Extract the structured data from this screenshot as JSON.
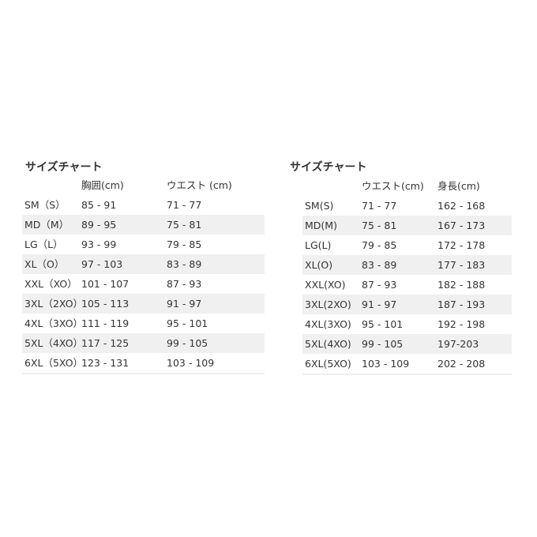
{
  "left": {
    "title": "サイズチャート",
    "headers": [
      "",
      "胸囲(cm)",
      "ウエスト (cm)"
    ],
    "rows": [
      [
        "SM（S）",
        "85 - 91",
        "71 - 77"
      ],
      [
        "MD（M）",
        "89 - 95",
        "75 - 81"
      ],
      [
        "LG（L）",
        "93 - 99",
        "79 - 85"
      ],
      [
        "XL（O）",
        "97 - 103",
        "83 - 89"
      ],
      [
        "XXL（XO）",
        "101 - 107",
        "87 - 93"
      ],
      [
        "3XL（2XO）",
        "105 - 113",
        "91 - 97"
      ],
      [
        "4XL（3XO）",
        "111 - 119",
        "95 - 101"
      ],
      [
        "5XL（4XO）",
        "117 - 125",
        "99 - 105"
      ],
      [
        "6XL（5XO）",
        "123 - 131",
        "103 - 109"
      ]
    ]
  },
  "right": {
    "title": "サイズチャート",
    "headers": [
      "",
      "ウエスト(cm)",
      "身長(cm)"
    ],
    "rows": [
      [
        "SM(S)",
        "71 - 77",
        "162 - 168"
      ],
      [
        "MD(M)",
        "75 - 81",
        "167 - 173"
      ],
      [
        "LG(L)",
        "79 - 85",
        "172 - 178"
      ],
      [
        "XL(O)",
        "83 - 89",
        "177 - 183"
      ],
      [
        "XXL(XO)",
        "87 - 93",
        "182 - 188"
      ],
      [
        "3XL(2XO)",
        "91 - 97",
        "187 - 193"
      ],
      [
        "4XL(3XO)",
        "95 - 101",
        "192 - 198"
      ],
      [
        "5XL(4XO)",
        "99 - 105",
        "197-203"
      ],
      [
        "6XL(5XO)",
        "103 - 109",
        "202 - 208"
      ]
    ]
  },
  "colors": {
    "stripe": "#f0f0f0",
    "text": "#333333"
  }
}
